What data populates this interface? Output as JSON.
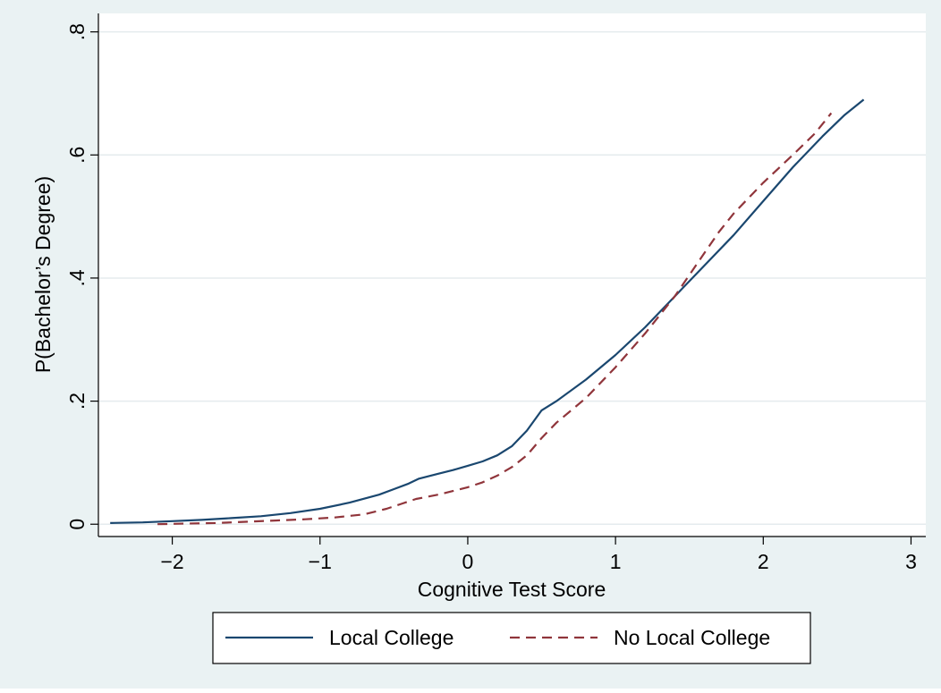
{
  "chart_data": {
    "type": "line",
    "title": "",
    "xlabel": "Cognitive Test Score",
    "ylabel": "P(Bachelor’s Degree)",
    "xlim": [
      -2.5,
      3.1
    ],
    "ylim": [
      -0.02,
      0.83
    ],
    "x_ticks": [
      -2,
      -1,
      0,
      1,
      2,
      3
    ],
    "x_tick_labels": [
      "−2",
      "−1",
      "0",
      "1",
      "2",
      "3"
    ],
    "y_ticks": [
      0,
      0.2,
      0.4,
      0.6,
      0.8
    ],
    "y_tick_labels": [
      "0",
      ".2",
      ".4",
      ".6",
      ".8"
    ],
    "grid": true,
    "legend_position": "bottom",
    "colors": {
      "outer_background": "#eaf2f3",
      "plot_background": "#ffffff",
      "grid": "#e5ebee"
    },
    "series": [
      {
        "name": "Local College",
        "style": "solid",
        "color": "#1a476f",
        "points": [
          [
            -2.42,
            0.002
          ],
          [
            -2.2,
            0.003
          ],
          [
            -2.0,
            0.005
          ],
          [
            -1.8,
            0.007
          ],
          [
            -1.6,
            0.01
          ],
          [
            -1.4,
            0.013
          ],
          [
            -1.2,
            0.018
          ],
          [
            -1.0,
            0.025
          ],
          [
            -0.8,
            0.035
          ],
          [
            -0.6,
            0.048
          ],
          [
            -0.5,
            0.057
          ],
          [
            -0.4,
            0.066
          ],
          [
            -0.33,
            0.074
          ],
          [
            -0.2,
            0.082
          ],
          [
            -0.1,
            0.088
          ],
          [
            0.0,
            0.095
          ],
          [
            0.1,
            0.102
          ],
          [
            0.2,
            0.112
          ],
          [
            0.3,
            0.127
          ],
          [
            0.4,
            0.152
          ],
          [
            0.5,
            0.185
          ],
          [
            0.6,
            0.2
          ],
          [
            0.8,
            0.235
          ],
          [
            1.0,
            0.275
          ],
          [
            1.2,
            0.32
          ],
          [
            1.4,
            0.37
          ],
          [
            1.6,
            0.42
          ],
          [
            1.8,
            0.47
          ],
          [
            2.0,
            0.525
          ],
          [
            2.2,
            0.58
          ],
          [
            2.4,
            0.63
          ],
          [
            2.55,
            0.665
          ],
          [
            2.68,
            0.69
          ]
        ]
      },
      {
        "name": "No Local College",
        "style": "dashed",
        "color": "#90353b",
        "points": [
          [
            -2.1,
            0.0
          ],
          [
            -1.9,
            0.001
          ],
          [
            -1.7,
            0.002
          ],
          [
            -1.5,
            0.004
          ],
          [
            -1.3,
            0.006
          ],
          [
            -1.1,
            0.008
          ],
          [
            -0.9,
            0.011
          ],
          [
            -0.7,
            0.016
          ],
          [
            -0.55,
            0.025
          ],
          [
            -0.45,
            0.033
          ],
          [
            -0.35,
            0.041
          ],
          [
            -0.2,
            0.048
          ],
          [
            -0.1,
            0.054
          ],
          [
            0.0,
            0.06
          ],
          [
            0.1,
            0.068
          ],
          [
            0.2,
            0.079
          ],
          [
            0.3,
            0.093
          ],
          [
            0.4,
            0.112
          ],
          [
            0.5,
            0.14
          ],
          [
            0.6,
            0.165
          ],
          [
            0.8,
            0.205
          ],
          [
            1.0,
            0.255
          ],
          [
            1.2,
            0.31
          ],
          [
            1.4,
            0.37
          ],
          [
            1.5,
            0.405
          ],
          [
            1.6,
            0.44
          ],
          [
            1.7,
            0.475
          ],
          [
            1.8,
            0.505
          ],
          [
            2.0,
            0.555
          ],
          [
            2.2,
            0.6
          ],
          [
            2.35,
            0.635
          ],
          [
            2.46,
            0.668
          ]
        ]
      }
    ]
  }
}
